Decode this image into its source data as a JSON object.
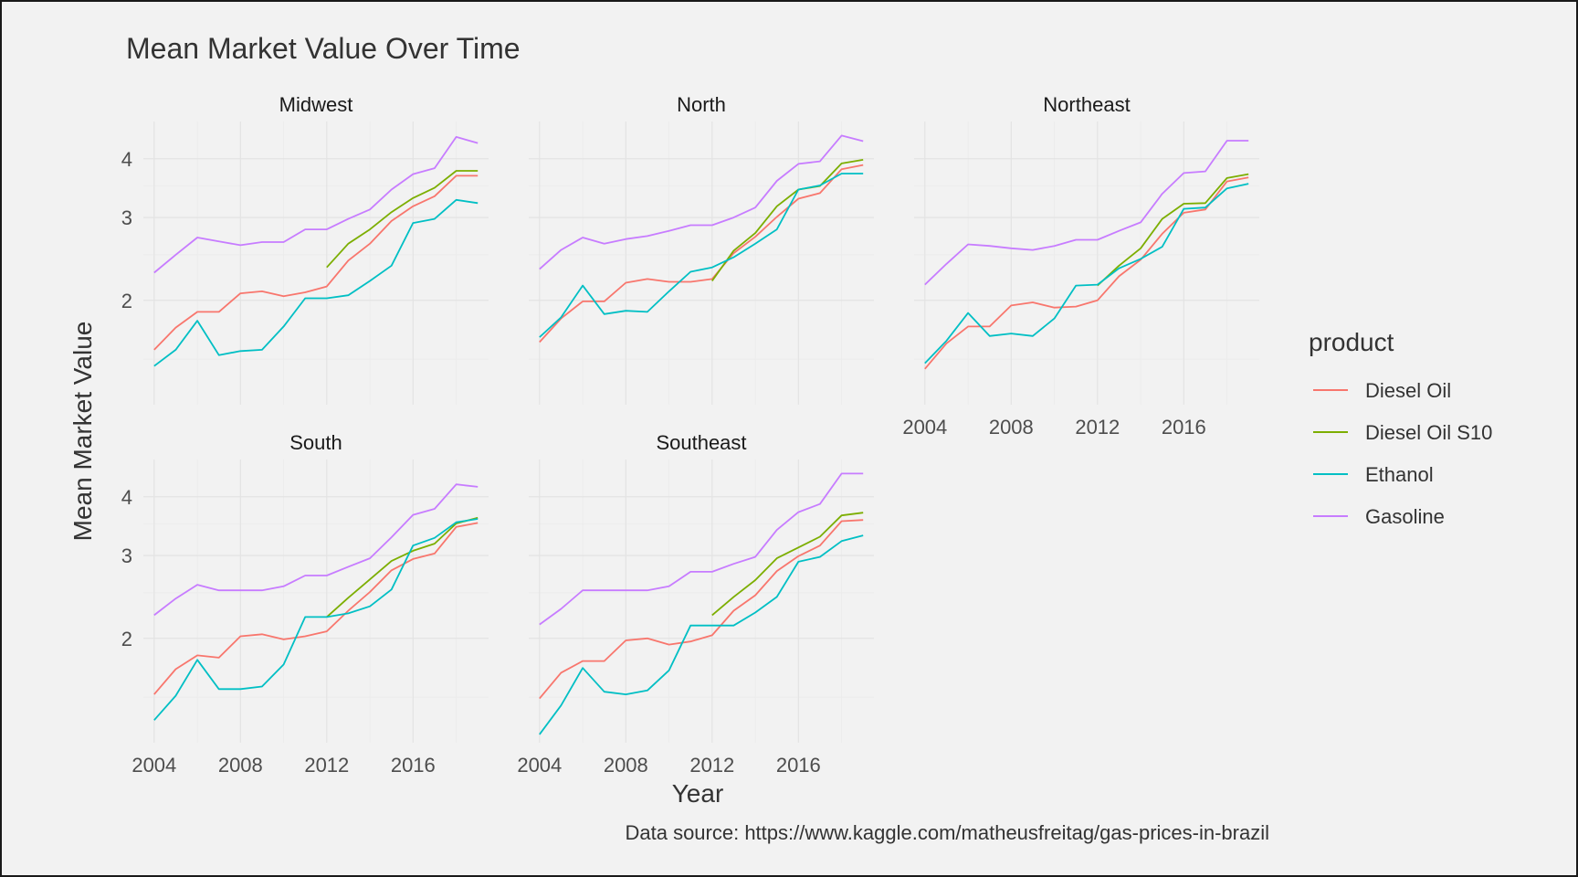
{
  "chart_data": {
    "type": "line",
    "title": "Mean Market Value Over Time",
    "xlabel": "Year",
    "ylabel": "Mean Market Value",
    "caption": "Data source: https://www.kaggle.com/matheusfreitag/gas-prices-in-brazil",
    "legend": {
      "title": "product",
      "position": "right"
    },
    "x_ticks": [
      2004,
      2008,
      2012,
      2016
    ],
    "y_ticks": [
      2,
      3,
      4
    ],
    "y_scale": "log",
    "xlim": [
      2003.5,
      2019.5
    ],
    "ylim": [
      1.2,
      4.8
    ],
    "grid": true,
    "colors": {
      "Diesel Oil": "#F8766D",
      "Diesel Oil S10": "#7CAE00",
      "Ethanol": "#00BFC4",
      "Gasoline": "#C77CFF"
    },
    "years": [
      2004,
      2005,
      2006,
      2007,
      2008,
      2009,
      2010,
      2011,
      2012,
      2013,
      2014,
      2015,
      2016,
      2017,
      2018,
      2019
    ],
    "s10_years": [
      2012,
      2013,
      2014,
      2015,
      2016,
      2017,
      2018,
      2019
    ],
    "panels": [
      {
        "name": "Midwest",
        "series": [
          {
            "name": "Diesel Oil",
            "values": [
              1.57,
              1.75,
              1.89,
              1.89,
              2.07,
              2.09,
              2.04,
              2.08,
              2.14,
              2.43,
              2.64,
              2.95,
              3.17,
              3.33,
              3.68,
              3.68
            ]
          },
          {
            "name": "Diesel Oil S10",
            "values": [
              2.35,
              2.64,
              2.83,
              3.08,
              3.3,
              3.47,
              3.77,
              3.77
            ]
          },
          {
            "name": "Ethanol",
            "values": [
              1.45,
              1.57,
              1.81,
              1.53,
              1.56,
              1.57,
              1.76,
              2.02,
              2.02,
              2.05,
              2.2,
              2.37,
              2.92,
              2.98,
              3.27,
              3.22
            ]
          },
          {
            "name": "Gasoline",
            "values": [
              2.29,
              2.5,
              2.72,
              2.67,
              2.62,
              2.66,
              2.66,
              2.83,
              2.83,
              2.98,
              3.12,
              3.44,
              3.71,
              3.82,
              4.45,
              4.32
            ]
          }
        ]
      },
      {
        "name": "North",
        "series": [
          {
            "name": "Diesel Oil",
            "values": [
              1.63,
              1.83,
              1.99,
              1.99,
              2.18,
              2.22,
              2.19,
              2.19,
              2.22,
              2.52,
              2.73,
              3.01,
              3.29,
              3.38,
              3.8,
              3.88
            ]
          },
          {
            "name": "Diesel Oil S10",
            "values": [
              2.2,
              2.55,
              2.78,
              3.17,
              3.44,
              3.5,
              3.91,
              3.98
            ]
          },
          {
            "name": "Ethanol",
            "values": [
              1.67,
              1.84,
              2.15,
              1.87,
              1.9,
              1.89,
              2.09,
              2.3,
              2.35,
              2.47,
              2.64,
              2.83,
              3.44,
              3.51,
              3.72,
              3.72
            ]
          },
          {
            "name": "Gasoline",
            "values": [
              2.33,
              2.56,
              2.72,
              2.64,
              2.7,
              2.74,
              2.81,
              2.89,
              2.89,
              3.0,
              3.15,
              3.59,
              3.9,
              3.95,
              4.48,
              4.36
            ]
          }
        ]
      },
      {
        "name": "Northeast",
        "series": [
          {
            "name": "Diesel Oil",
            "values": [
              1.43,
              1.62,
              1.76,
              1.76,
              1.95,
              1.98,
              1.93,
              1.94,
              2.0,
              2.25,
              2.44,
              2.77,
              3.07,
              3.12,
              3.58,
              3.65
            ]
          },
          {
            "name": "Diesel Oil S10",
            "values": [
              2.15,
              2.37,
              2.58,
              2.98,
              3.21,
              3.22,
              3.64,
              3.71
            ]
          },
          {
            "name": "Ethanol",
            "values": [
              1.47,
              1.64,
              1.88,
              1.68,
              1.7,
              1.68,
              1.83,
              2.15,
              2.16,
              2.34,
              2.45,
              2.6,
              3.13,
              3.15,
              3.46,
              3.54
            ]
          },
          {
            "name": "Gasoline",
            "values": [
              2.16,
              2.39,
              2.63,
              2.61,
              2.58,
              2.56,
              2.61,
              2.69,
              2.69,
              2.81,
              2.93,
              3.37,
              3.73,
              3.76,
              4.37,
              4.37
            ]
          }
        ]
      },
      {
        "name": "South",
        "series": [
          {
            "name": "Diesel Oil",
            "values": [
              1.52,
              1.72,
              1.84,
              1.82,
              2.02,
              2.04,
              1.99,
              2.02,
              2.07,
              2.29,
              2.51,
              2.79,
              2.95,
              3.03,
              3.45,
              3.52
            ]
          },
          {
            "name": "Diesel Oil S10",
            "values": [
              2.22,
              2.44,
              2.67,
              2.92,
              3.07,
              3.18,
              3.51,
              3.61
            ]
          },
          {
            "name": "Ethanol",
            "values": [
              1.34,
              1.51,
              1.8,
              1.56,
              1.56,
              1.58,
              1.76,
              2.22,
              2.22,
              2.26,
              2.34,
              2.54,
              3.15,
              3.27,
              3.53,
              3.59
            ]
          },
          {
            "name": "Gasoline",
            "values": [
              2.24,
              2.43,
              2.6,
              2.53,
              2.53,
              2.53,
              2.58,
              2.72,
              2.72,
              2.84,
              2.96,
              3.28,
              3.66,
              3.77,
              4.25,
              4.2
            ]
          }
        ]
      },
      {
        "name": "Southeast",
        "series": [
          {
            "name": "Diesel Oil",
            "values": [
              1.49,
              1.69,
              1.79,
              1.79,
              1.98,
              2.0,
              1.94,
              1.97,
              2.03,
              2.29,
              2.47,
              2.78,
              2.99,
              3.15,
              3.55,
              3.57
            ]
          },
          {
            "name": "Diesel Oil S10",
            "values": [
              2.24,
              2.45,
              2.66,
              2.96,
              3.12,
              3.29,
              3.65,
              3.7
            ]
          },
          {
            "name": "Ethanol",
            "values": [
              1.25,
              1.44,
              1.73,
              1.54,
              1.52,
              1.55,
              1.71,
              2.13,
              2.13,
              2.13,
              2.27,
              2.45,
              2.91,
              2.98,
              3.22,
              3.31
            ]
          },
          {
            "name": "Gasoline",
            "values": [
              2.14,
              2.31,
              2.53,
              2.53,
              2.53,
              2.53,
              2.58,
              2.77,
              2.77,
              2.88,
              2.98,
              3.4,
              3.71,
              3.86,
              4.48,
              4.48
            ]
          }
        ]
      }
    ]
  }
}
